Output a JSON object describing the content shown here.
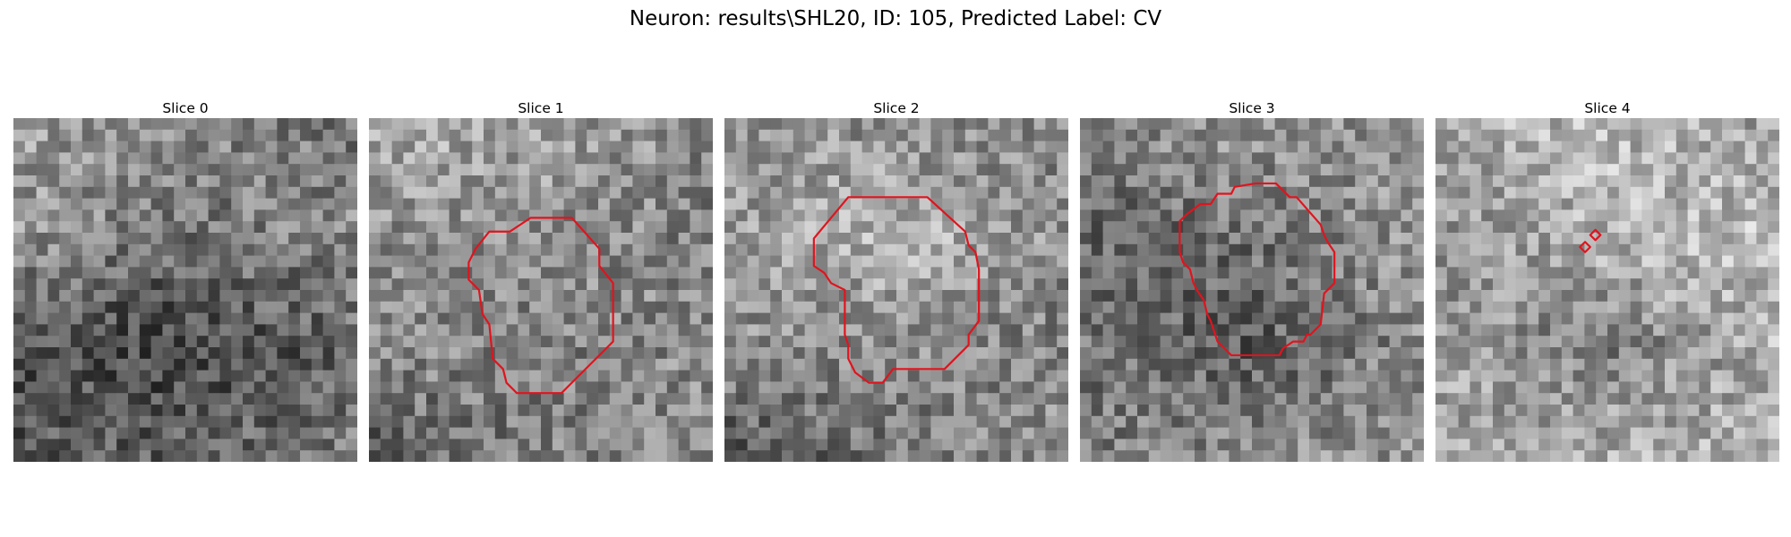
{
  "figure": {
    "title": "Neuron: results\\SHL20, ID: 105, Predicted Label: CV",
    "contour_color": "#e0141e"
  },
  "panels": [
    {
      "title": "Slice 0",
      "seed": 11,
      "base": [
        [
          0.62,
          0.55,
          0.45
        ],
        [
          0.6,
          0.45,
          0.55
        ],
        [
          0.3,
          0.25,
          0.4
        ],
        [
          0.35,
          0.4,
          0.5
        ]
      ],
      "contours": []
    },
    {
      "title": "Slice 1",
      "seed": 23,
      "base": [
        [
          0.7,
          0.62,
          0.55
        ],
        [
          0.55,
          0.58,
          0.5
        ],
        [
          0.55,
          0.5,
          0.55
        ],
        [
          0.35,
          0.5,
          0.55
        ]
      ],
      "contours": [
        [
          [
            0.47,
            0.29
          ],
          [
            0.59,
            0.29
          ],
          [
            0.67,
            0.38
          ],
          [
            0.67,
            0.43
          ],
          [
            0.71,
            0.48
          ],
          [
            0.71,
            0.65
          ],
          [
            0.68,
            0.68
          ],
          [
            0.56,
            0.8
          ],
          [
            0.43,
            0.8
          ],
          [
            0.4,
            0.77
          ],
          [
            0.39,
            0.73
          ],
          [
            0.36,
            0.7
          ],
          [
            0.35,
            0.6
          ],
          [
            0.33,
            0.57
          ],
          [
            0.32,
            0.5
          ],
          [
            0.29,
            0.47
          ],
          [
            0.29,
            0.42
          ],
          [
            0.31,
            0.38
          ],
          [
            0.35,
            0.33
          ],
          [
            0.41,
            0.33
          ]
        ]
      ]
    },
    {
      "title": "Slice 2",
      "seed": 37,
      "base": [
        [
          0.62,
          0.55,
          0.5
        ],
        [
          0.58,
          0.72,
          0.55
        ],
        [
          0.55,
          0.55,
          0.5
        ],
        [
          0.35,
          0.45,
          0.58
        ]
      ],
      "contours": [
        [
          [
            0.36,
            0.23
          ],
          [
            0.59,
            0.23
          ],
          [
            0.7,
            0.33
          ],
          [
            0.71,
            0.37
          ],
          [
            0.73,
            0.39
          ],
          [
            0.74,
            0.44
          ],
          [
            0.74,
            0.59
          ],
          [
            0.71,
            0.63
          ],
          [
            0.71,
            0.66
          ],
          [
            0.64,
            0.73
          ],
          [
            0.49,
            0.73
          ],
          [
            0.46,
            0.77
          ],
          [
            0.42,
            0.77
          ],
          [
            0.38,
            0.74
          ],
          [
            0.36,
            0.7
          ],
          [
            0.36,
            0.66
          ],
          [
            0.35,
            0.63
          ],
          [
            0.35,
            0.5
          ],
          [
            0.31,
            0.48
          ],
          [
            0.29,
            0.45
          ],
          [
            0.26,
            0.43
          ],
          [
            0.26,
            0.35
          ]
        ]
      ]
    },
    {
      "title": "Slice 3",
      "seed": 53,
      "base": [
        [
          0.55,
          0.6,
          0.55
        ],
        [
          0.4,
          0.45,
          0.6
        ],
        [
          0.45,
          0.35,
          0.55
        ],
        [
          0.5,
          0.55,
          0.6
        ]
      ],
      "contours": [
        [
          [
            0.51,
            0.19
          ],
          [
            0.57,
            0.19
          ],
          [
            0.61,
            0.23
          ],
          [
            0.63,
            0.23
          ],
          [
            0.7,
            0.31
          ],
          [
            0.71,
            0.34
          ],
          [
            0.72,
            0.36
          ],
          [
            0.74,
            0.39
          ],
          [
            0.74,
            0.48
          ],
          [
            0.71,
            0.51
          ],
          [
            0.7,
            0.6
          ],
          [
            0.67,
            0.63
          ],
          [
            0.66,
            0.63
          ],
          [
            0.65,
            0.65
          ],
          [
            0.62,
            0.65
          ],
          [
            0.59,
            0.67
          ],
          [
            0.58,
            0.69
          ],
          [
            0.44,
            0.69
          ],
          [
            0.42,
            0.67
          ],
          [
            0.4,
            0.65
          ],
          [
            0.38,
            0.59
          ],
          [
            0.37,
            0.57
          ],
          [
            0.36,
            0.53
          ],
          [
            0.34,
            0.5
          ],
          [
            0.33,
            0.48
          ],
          [
            0.32,
            0.44
          ],
          [
            0.3,
            0.42
          ],
          [
            0.29,
            0.39
          ],
          [
            0.29,
            0.3
          ],
          [
            0.31,
            0.28
          ],
          [
            0.35,
            0.25
          ],
          [
            0.38,
            0.25
          ],
          [
            0.4,
            0.22
          ],
          [
            0.44,
            0.22
          ],
          [
            0.45,
            0.2
          ]
        ]
      ]
    },
    {
      "title": "Slice 4",
      "seed": 71,
      "base": [
        [
          0.7,
          0.72,
          0.6
        ],
        [
          0.55,
          0.72,
          0.75
        ],
        [
          0.62,
          0.48,
          0.7
        ],
        [
          0.65,
          0.7,
          0.68
        ]
      ],
      "contours": [
        [
          [
            0.465,
            0.325
          ],
          [
            0.48,
            0.34
          ],
          [
            0.465,
            0.355
          ],
          [
            0.45,
            0.34
          ]
        ],
        [
          [
            0.435,
            0.36
          ],
          [
            0.45,
            0.375
          ],
          [
            0.435,
            0.39
          ],
          [
            0.42,
            0.375
          ]
        ]
      ]
    }
  ]
}
